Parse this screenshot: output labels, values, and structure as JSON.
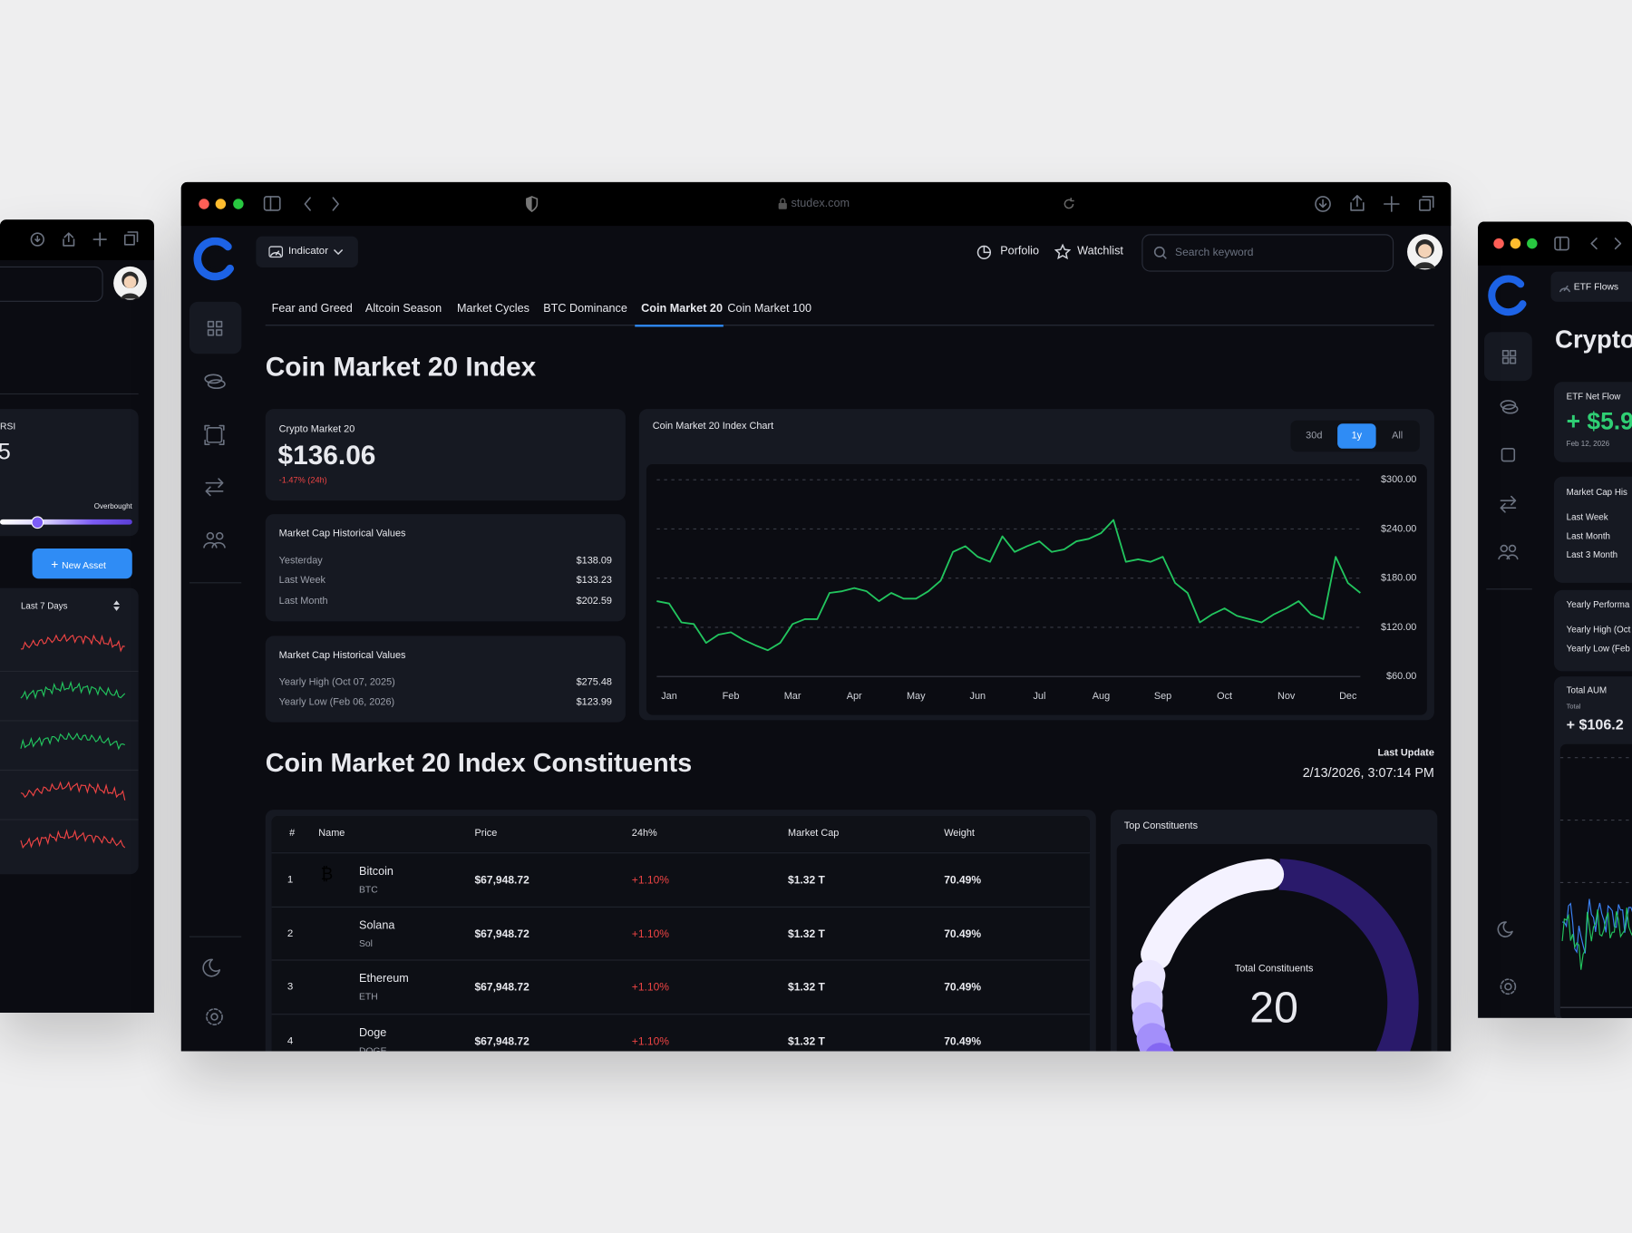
{
  "browser": {
    "url": "studex.com"
  },
  "header": {
    "indicator": "Indicator",
    "portfolio": "Porfolio",
    "watchlist": "Watchlist",
    "search_placeholder": "Search keyword"
  },
  "tabs": {
    "items": [
      "Fear and Greed",
      "Altcoin Season",
      "Market Cycles",
      "BTC Dominance",
      "Coin Market 20",
      "Coin Market 100"
    ],
    "active": 4
  },
  "page_title": "Coin Market 20 Index",
  "price_card": {
    "label": "Crypto Market 20",
    "value": "$136.06",
    "change": "-1.47% (24h)"
  },
  "historical_values": {
    "title": "Market Cap Historical Values",
    "rows": [
      {
        "label": "Yesterday",
        "value": "$138.09"
      },
      {
        "label": "Last Week",
        "value": "$133.23"
      },
      {
        "label": "Last Month",
        "value": "$202.59"
      }
    ]
  },
  "yearly_values": {
    "title": "Market Cap Historical Values",
    "rows": [
      {
        "label": "Yearly High (Oct 07, 2025)",
        "value": "$275.48"
      },
      {
        "label": "Yearly Low (Feb 06, 2026)",
        "value": "$123.99"
      }
    ]
  },
  "chart_data": {
    "type": "line",
    "title": "Coin Market 20 Index Chart",
    "ranges": [
      "30d",
      "1y",
      "All"
    ],
    "active_range": 1,
    "color": "#22c55e",
    "grid": true,
    "x": [
      -0.2,
      0,
      0.2,
      0.4,
      0.6,
      0.8,
      1,
      1.2,
      1.4,
      1.6,
      1.8,
      2,
      2.2,
      2.4,
      2.6,
      2.8,
      3,
      3.2,
      3.4,
      3.6,
      3.8,
      4,
      4.2,
      4.4,
      4.6,
      4.8,
      5,
      5.2,
      5.4,
      5.6,
      5.8,
      6,
      6.2,
      6.4,
      6.6,
      6.8,
      7,
      7.2,
      7.4,
      7.6,
      7.8,
      8,
      8.2,
      8.4,
      8.6,
      8.8,
      9,
      9.2,
      9.4,
      9.6,
      9.8,
      10,
      10.2,
      10.4,
      10.6,
      10.8,
      11,
      11.2
    ],
    "values": [
      152,
      149,
      126,
      124,
      101,
      111,
      114,
      105,
      98,
      92,
      101,
      124,
      130,
      130,
      162,
      164,
      168,
      164,
      152,
      162,
      155,
      155,
      164,
      177,
      212,
      219,
      206,
      200,
      231,
      212,
      219,
      225,
      212,
      215,
      225,
      228,
      235,
      251,
      200,
      203,
      200,
      206,
      174,
      162,
      126,
      136,
      143,
      134,
      130,
      126,
      136,
      143,
      152,
      136,
      130,
      206,
      174,
      162
    ],
    "xlim": [
      -0.2,
      11.2
    ],
    "xticks": [
      {
        "value": 0,
        "label": "Jan"
      },
      {
        "value": 1,
        "label": "Feb"
      },
      {
        "value": 2,
        "label": "Mar"
      },
      {
        "value": 3,
        "label": "Apr"
      },
      {
        "value": 4,
        "label": "May"
      },
      {
        "value": 5,
        "label": "Jun"
      },
      {
        "value": 6,
        "label": "Jul"
      },
      {
        "value": 7,
        "label": "Aug"
      },
      {
        "value": 8,
        "label": "Sep"
      },
      {
        "value": 9,
        "label": "Oct"
      },
      {
        "value": 10,
        "label": "Nov"
      },
      {
        "value": 11,
        "label": "Dec"
      }
    ],
    "ylim": [
      60,
      300
    ],
    "yticks": [
      {
        "value": 300,
        "label": "$300.00"
      },
      {
        "value": 240,
        "label": "$240.00"
      },
      {
        "value": 180,
        "label": "$180.00"
      },
      {
        "value": 120,
        "label": "$120.00"
      },
      {
        "value": 60,
        "label": "$60.00"
      }
    ]
  },
  "constituents": {
    "title": "Coin Market 20 Index Constituents",
    "last_update_label": "Last Update",
    "last_update": "2/13/2026, 3:07:14 PM",
    "table": {
      "headers": [
        "#",
        "Name",
        "Price",
        "24h%",
        "Market Cap",
        "Weight"
      ],
      "rows": [
        {
          "rank": 1,
          "name": "Bitcoin",
          "symbol": "BTC",
          "price": "$67,948.72",
          "change": "+1.10%",
          "market_cap": "$1.32 T",
          "weight": "70.49%"
        },
        {
          "rank": 2,
          "name": "Solana",
          "symbol": "Sol",
          "price": "$67,948.72",
          "change": "+1.10%",
          "market_cap": "$1.32 T",
          "weight": "70.49%"
        },
        {
          "rank": 3,
          "name": "Ethereum",
          "symbol": "ETH",
          "price": "$67,948.72",
          "change": "+1.10%",
          "market_cap": "$1.32 T",
          "weight": "70.49%"
        },
        {
          "rank": 4,
          "name": "Doge",
          "symbol": "DOGE",
          "price": "$67,948.72",
          "change": "+1.10%",
          "market_cap": "$1.32 T",
          "weight": "70.49%"
        }
      ]
    },
    "top": {
      "title": "Top Constituents",
      "total_label": "Total Constituents",
      "total": 20
    }
  },
  "left_window": {
    "rsi_label": "RSI",
    "rsi_value": "5",
    "overbought": "Overbought",
    "new_asset": "New Asset",
    "period": "Last 7 Days"
  },
  "right_window": {
    "indicator": "ETF Flows",
    "title": "Crypto",
    "etf_label": "ETF Net Flow",
    "etf_value": "+ $5.9",
    "etf_date": "Feb 12, 2026",
    "history_title": "Market Cap His",
    "history_rows": [
      "Last Week",
      "Last Month",
      "Last 3 Month"
    ],
    "yearly_title": "Yearly Performa",
    "yearly_rows": [
      "Yearly High (Oct",
      "Yearly Low (Feb"
    ],
    "aum_title": "Total AUM",
    "aum_label": "Total",
    "aum_value": "+ $106.2"
  }
}
